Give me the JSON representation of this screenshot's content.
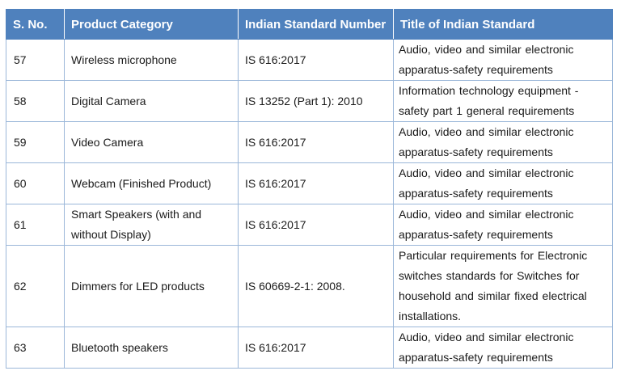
{
  "table": {
    "headers": [
      "S. No.",
      "Product Category",
      "Indian Standard Number",
      "Title of Indian Standard"
    ],
    "rows": [
      {
        "sno": "57",
        "category": "Wireless microphone",
        "standard_number": "IS 616:2017",
        "title_lines": [
          "Audio, video and similar electronic",
          "apparatus-safety requirements"
        ]
      },
      {
        "sno": "58",
        "category": "Digital Camera",
        "standard_number": "IS 13252 (Part 1): 2010",
        "title_lines": [
          "Information technology equipment -",
          "safety part 1 general requirements"
        ]
      },
      {
        "sno": "59",
        "category": "Video Camera",
        "standard_number": "IS 616:2017",
        "title_lines": [
          "Audio, video and similar electronic",
          "apparatus-safety requirements"
        ]
      },
      {
        "sno": "60",
        "category": "Webcam (Finished Product)",
        "standard_number": "IS 616:2017",
        "title_lines": [
          "Audio, video and similar electronic",
          "apparatus-safety requirements"
        ]
      },
      {
        "sno": "61",
        "category_lines": [
          "Smart Speakers (with and",
          "without Display)"
        ],
        "standard_number": "IS 616:2017",
        "title_lines": [
          "Audio, video and similar electronic",
          "apparatus-safety requirements"
        ]
      },
      {
        "sno": "62",
        "category": "Dimmers for LED products",
        "standard_number": "IS 60669-2-1: 2008.",
        "title_lines": [
          "Particular requirements for Electronic",
          "switches standards for Switches for",
          "household and similar fixed electrical",
          "installations."
        ]
      },
      {
        "sno": "63",
        "category": "Bluetooth speakers",
        "standard_number": "IS 616:2017",
        "title_lines": [
          "Audio, video and similar electronic",
          "apparatus-safety requirements"
        ]
      }
    ]
  },
  "colors": {
    "header_background": "#4f81bd",
    "header_text": "#ffffff",
    "cell_border": "#9bb7d9"
  }
}
